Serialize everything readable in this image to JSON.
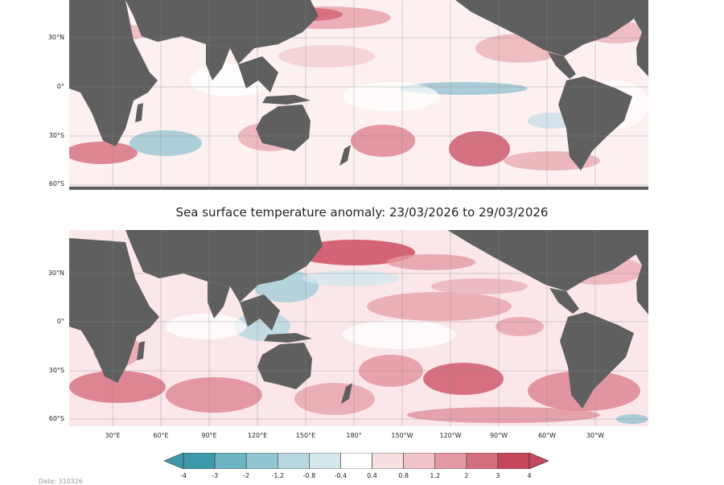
{
  "title": "Sea surface temperature anomaly: 23/03/2026 to 29/03/2026",
  "lat_labels_top": [
    "30°N",
    "0°",
    "30°S",
    "60°S"
  ],
  "lat_labels_bottom": [
    "30°N",
    "0°",
    "30°S",
    "60°S"
  ],
  "lon_labels": [
    "30°E",
    "60°E",
    "90°E",
    "120°E",
    "150°E",
    "180°",
    "150°W",
    "120°W",
    "90°W",
    "60°W",
    "30°W"
  ],
  "colorbar": {
    "ticks": [
      "-4",
      "-3",
      "-2",
      "-1.2",
      "-0.8",
      "-0.4",
      "0.4",
      "0.8",
      "1.2",
      "2",
      "3",
      "4"
    ],
    "colors": [
      "#3d99aa",
      "#6cb3c4",
      "#93c6d3",
      "#b7d8e1",
      "#d4e7ec",
      "#ffffff",
      "#f8dfe1",
      "#f0c3c8",
      "#e39aa4",
      "#d46f7e",
      "#c4475a"
    ],
    "unit": ""
  },
  "colors": {
    "land": "#5f5f5f",
    "warm": "#d05a6c",
    "cool": "#7fb3c6",
    "background": "#ffffff"
  },
  "footer_text": "Date: 310326"
}
